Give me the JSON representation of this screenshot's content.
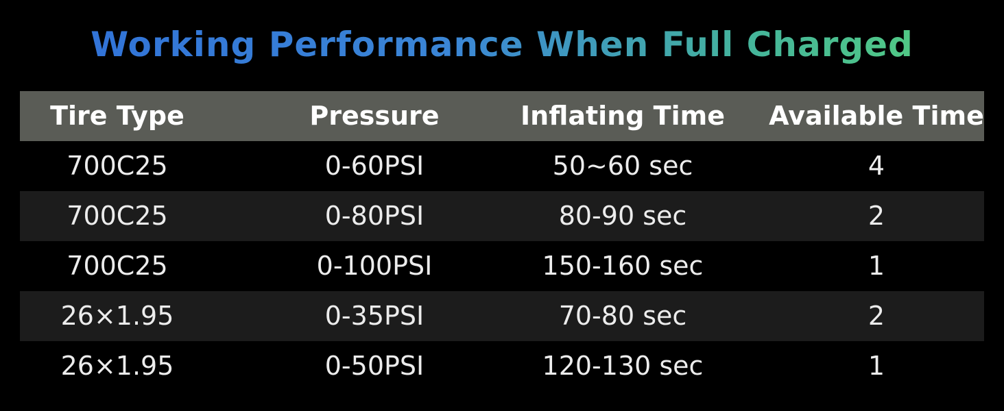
{
  "title": "Working Performance When Full Charged",
  "table": {
    "headers": [
      "Tire Type",
      "Pressure",
      "Inflating Time",
      "Available Time"
    ],
    "rows": [
      [
        "700C25",
        "0-60PSI",
        "50~60 sec",
        "4"
      ],
      [
        "700C25",
        "0-80PSI",
        "80-90 sec",
        "2"
      ],
      [
        "700C25",
        "0-100PSI",
        "150-160 sec",
        "1"
      ],
      [
        "26×1.95",
        "0-35PSI",
        "70-80 sec",
        "2"
      ],
      [
        "26×1.95",
        "0-50PSI",
        "120-130 sec",
        "1"
      ]
    ]
  },
  "colors": {
    "background": "#000000",
    "header_bg": "#5a5c56",
    "shaded_row_bg": "#1c1c1c",
    "title_gradient_start": "#2f6fd8",
    "title_gradient_end": "#57d37a"
  }
}
